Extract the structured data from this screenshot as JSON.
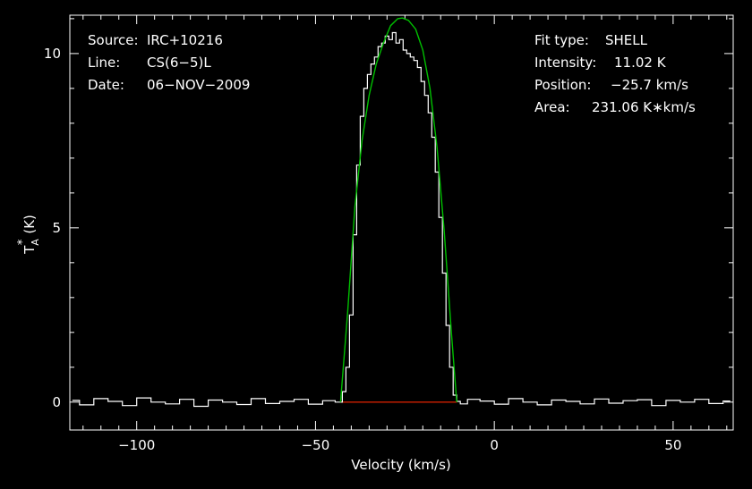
{
  "chart_data": {
    "type": "line",
    "xlabel": "Velocity (km/s)",
    "ylabel": "T",
    "ylabel_sub": "A",
    "ylabel_sup": "*",
    "ylabel_unit": "(K)",
    "xlim": [
      -118.7,
      66.8
    ],
    "ylim": [
      -0.8,
      11.1
    ],
    "xticks": [
      -100,
      -50,
      0,
      50
    ],
    "xtick_labels": [
      "−100",
      "−50",
      "0",
      "50"
    ],
    "yticks": [
      0,
      5,
      10
    ],
    "ytick_labels": [
      "0",
      "5",
      "10"
    ],
    "info_left": [
      {
        "key": "Source:",
        "value": "IRC+10216"
      },
      {
        "key": "Line:",
        "value": "CS(6−5)L"
      },
      {
        "key": "Date:",
        "value": "06−NOV−2009"
      }
    ],
    "info_right": [
      {
        "key": "Fit type:",
        "value": "SHELL"
      },
      {
        "key": "Intensity:",
        "value": "11.02 K"
      },
      {
        "key": "Position:",
        "value": "−25.7 km/s"
      },
      {
        "key": "Area:",
        "value": "231.06 K∗km/s"
      }
    ],
    "colors": {
      "background": "#000000",
      "spectrum": "#ffffff",
      "fit": "#00c000",
      "baseline": "#d02000",
      "axes": "#ffffff"
    },
    "series": [
      {
        "style": "histogram",
        "color": "#ffffff",
        "x": [
          -118,
          -114,
          -110,
          -106,
          -102,
          -98,
          -94,
          -90,
          -86,
          -82,
          -78,
          -74,
          -70,
          -66,
          -62,
          -58,
          -54,
          -50,
          -46,
          -43,
          -42,
          -41,
          -40,
          -39,
          -38,
          -37,
          -36,
          -35,
          -34,
          -33,
          -32,
          -31,
          -30,
          -29,
          -28,
          -27,
          -26,
          -25,
          -24,
          -23,
          -22,
          -21,
          -20,
          -19,
          -18,
          -17,
          -16,
          -15,
          -14,
          -13,
          -12,
          -11,
          -10,
          -9,
          -6,
          -2,
          2,
          6,
          10,
          14,
          18,
          22,
          26,
          30,
          34,
          38,
          42,
          46,
          50,
          54,
          58,
          62,
          66
        ],
        "y": [
          0.05,
          -0.08,
          0.1,
          0.02,
          -0.1,
          0.12,
          0.0,
          -0.05,
          0.08,
          -0.12,
          0.06,
          0.0,
          -0.07,
          0.1,
          -0.04,
          0.02,
          0.08,
          -0.06,
          0.04,
          0.0,
          0.3,
          1.0,
          2.5,
          4.8,
          6.8,
          8.2,
          9.0,
          9.4,
          9.7,
          9.9,
          10.2,
          10.3,
          10.5,
          10.4,
          10.6,
          10.3,
          10.4,
          10.1,
          10.0,
          9.9,
          9.8,
          9.6,
          9.2,
          8.8,
          8.3,
          7.6,
          6.6,
          5.3,
          3.7,
          2.2,
          1.0,
          0.2,
          0.02,
          -0.05,
          0.08,
          0.03,
          -0.06,
          0.1,
          0.0,
          -0.08,
          0.06,
          0.02,
          -0.05,
          0.09,
          -0.03,
          0.04,
          0.07,
          -0.1,
          0.05,
          0.0,
          0.08,
          -0.04,
          0.03
        ]
      },
      {
        "style": "line",
        "color": "#00c000",
        "x": [
          -43,
          -41,
          -39,
          -37,
          -35,
          -33,
          -31,
          -29,
          -27,
          -25.7,
          -24,
          -22,
          -20,
          -18,
          -16,
          -14,
          -12,
          -10.5
        ],
        "y": [
          0,
          2.6,
          5.6,
          7.5,
          8.8,
          9.7,
          10.3,
          10.8,
          11.0,
          11.02,
          10.95,
          10.7,
          10.1,
          9.0,
          7.3,
          4.9,
          2.0,
          0
        ]
      },
      {
        "style": "line",
        "color": "#d02000",
        "x": [
          -43,
          -10.5
        ],
        "y": [
          0,
          0
        ]
      }
    ]
  }
}
